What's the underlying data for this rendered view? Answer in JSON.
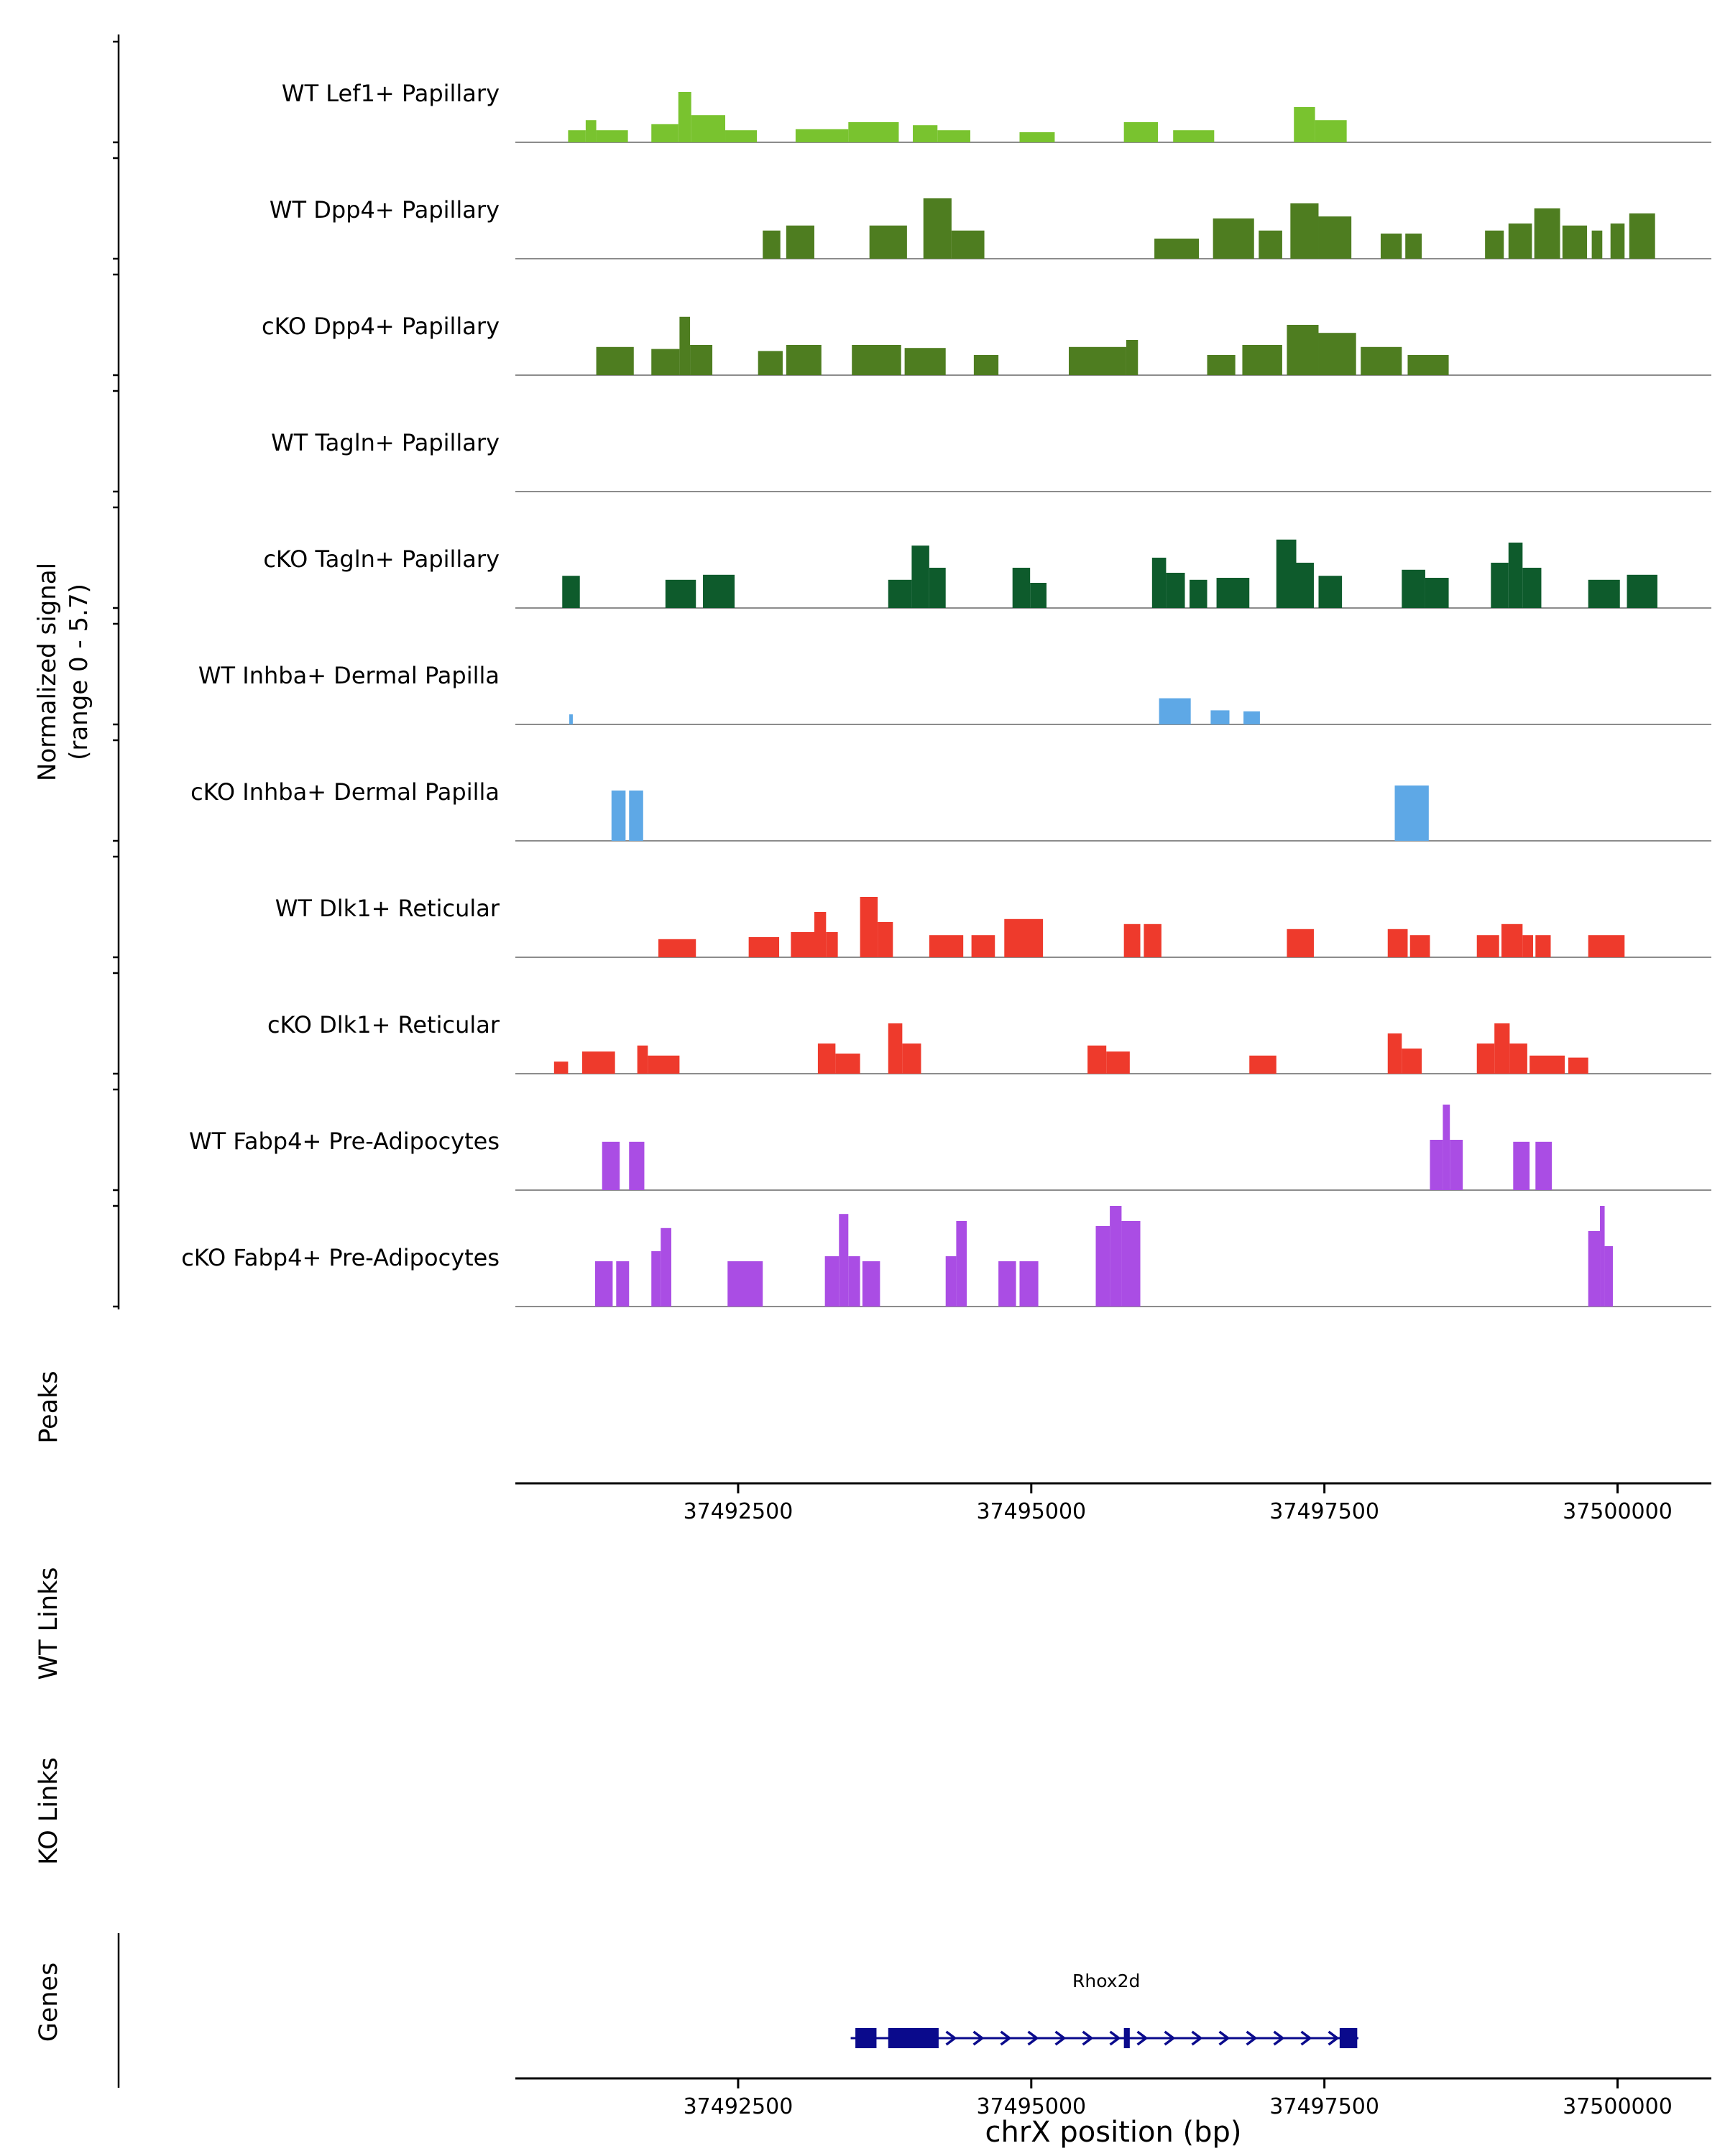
{
  "figure": {
    "y_axis_label_line1": "Normalized signal",
    "y_axis_label_line2": "(range 0 - 5.7)",
    "sections": {
      "peaks": "Peaks",
      "wt_links": "WT Links",
      "ko_links": "KO Links",
      "genes": "Genes"
    },
    "x_axis": {
      "title": "chrX position (bp)",
      "ticks": [
        "37492500",
        "37495000",
        "37497500",
        "37500000"
      ]
    }
  },
  "chart_data": {
    "type": "area",
    "subtype": "genome_coverage_tracks",
    "region": {
      "chrom": "chrX",
      "start": 37490600,
      "end": 37500800
    },
    "signal_range": [
      0,
      5.7
    ],
    "height_scale": "fraction of y-max (5.7)",
    "x_ticks_bp": [
      37492500,
      37495000,
      37497500,
      37500000
    ],
    "tracks": [
      {
        "name": "WT Lef1+ Papillary",
        "color": "#79C32F",
        "segments": [
          [
            37491050,
            37491200,
            0.12
          ],
          [
            37491200,
            37491290,
            0.22
          ],
          [
            37491290,
            37491560,
            0.12
          ],
          [
            37491760,
            37491990,
            0.18
          ],
          [
            37491990,
            37492100,
            0.5
          ],
          [
            37492100,
            37492390,
            0.27
          ],
          [
            37492390,
            37492660,
            0.12
          ],
          [
            37492990,
            37493440,
            0.13
          ],
          [
            37493440,
            37493870,
            0.2
          ],
          [
            37493990,
            37494200,
            0.17
          ],
          [
            37494200,
            37494480,
            0.12
          ],
          [
            37494900,
            37495200,
            0.1
          ],
          [
            37495790,
            37496080,
            0.2
          ],
          [
            37496210,
            37496560,
            0.12
          ],
          [
            37497240,
            37497420,
            0.35
          ],
          [
            37497420,
            37497690,
            0.22
          ]
        ]
      },
      {
        "name": "WT Dpp4+ Papillary",
        "color": "#4E7D20",
        "segments": [
          [
            37492710,
            37492860,
            0.28
          ],
          [
            37492910,
            37493150,
            0.33
          ],
          [
            37493620,
            37493940,
            0.33
          ],
          [
            37494080,
            37494320,
            0.6
          ],
          [
            37494320,
            37494600,
            0.28
          ],
          [
            37496050,
            37496430,
            0.2
          ],
          [
            37496550,
            37496900,
            0.4
          ],
          [
            37496940,
            37497140,
            0.28
          ],
          [
            37497210,
            37497450,
            0.55
          ],
          [
            37497450,
            37497730,
            0.42
          ],
          [
            37497980,
            37498160,
            0.25
          ],
          [
            37498190,
            37498330,
            0.25
          ],
          [
            37498870,
            37499030,
            0.28
          ],
          [
            37499070,
            37499270,
            0.35
          ],
          [
            37499290,
            37499510,
            0.5
          ],
          [
            37499530,
            37499740,
            0.33
          ],
          [
            37499780,
            37499870,
            0.28
          ],
          [
            37499940,
            37500060,
            0.35
          ],
          [
            37500100,
            37500320,
            0.45
          ]
        ]
      },
      {
        "name": "cKO Dpp4+ Papillary",
        "color": "#4E7D20",
        "segments": [
          [
            37491290,
            37491610,
            0.28
          ],
          [
            37491760,
            37492000,
            0.26
          ],
          [
            37492000,
            37492090,
            0.58
          ],
          [
            37492090,
            37492280,
            0.3
          ],
          [
            37492670,
            37492880,
            0.24
          ],
          [
            37492910,
            37493210,
            0.3
          ],
          [
            37493470,
            37493890,
            0.3
          ],
          [
            37493920,
            37494270,
            0.27
          ],
          [
            37494510,
            37494720,
            0.2
          ],
          [
            37495320,
            37495810,
            0.28
          ],
          [
            37495810,
            37495910,
            0.35
          ],
          [
            37496500,
            37496740,
            0.2
          ],
          [
            37496800,
            37497140,
            0.3
          ],
          [
            37497180,
            37497450,
            0.5
          ],
          [
            37497450,
            37497770,
            0.42
          ],
          [
            37497810,
            37498160,
            0.28
          ],
          [
            37498210,
            37498560,
            0.2
          ]
        ]
      },
      {
        "name": "WT Tagln+ Papillary",
        "color": "#0E5B2C",
        "segments": []
      },
      {
        "name": "cKO Tagln+ Papillary",
        "color": "#0E5B2C",
        "segments": [
          [
            37491000,
            37491150,
            0.32
          ],
          [
            37491880,
            37492140,
            0.28
          ],
          [
            37492200,
            37492470,
            0.33
          ],
          [
            37493780,
            37493980,
            0.28
          ],
          [
            37493980,
            37494130,
            0.62
          ],
          [
            37494130,
            37494270,
            0.4
          ],
          [
            37494840,
            37494990,
            0.4
          ],
          [
            37494990,
            37495130,
            0.25
          ],
          [
            37496030,
            37496150,
            0.5
          ],
          [
            37496150,
            37496310,
            0.35
          ],
          [
            37496350,
            37496500,
            0.28
          ],
          [
            37496580,
            37496860,
            0.3
          ],
          [
            37497090,
            37497260,
            0.68
          ],
          [
            37497260,
            37497410,
            0.45
          ],
          [
            37497450,
            37497650,
            0.32
          ],
          [
            37498160,
            37498360,
            0.38
          ],
          [
            37498360,
            37498560,
            0.3
          ],
          [
            37498920,
            37499070,
            0.45
          ],
          [
            37499070,
            37499190,
            0.65
          ],
          [
            37499190,
            37499350,
            0.4
          ],
          [
            37499750,
            37500020,
            0.28
          ],
          [
            37500080,
            37500340,
            0.33
          ]
        ]
      },
      {
        "name": "WT Inhba+ Dermal Papilla",
        "color": "#5EA8E6",
        "segments": [
          [
            37491060,
            37491090,
            0.1
          ],
          [
            37496090,
            37496360,
            0.26
          ],
          [
            37496530,
            37496690,
            0.14
          ],
          [
            37496810,
            37496950,
            0.13
          ]
        ]
      },
      {
        "name": "cKO Inhba+ Dermal Papilla",
        "color": "#5EA8E6",
        "segments": [
          [
            37491420,
            37491540,
            0.5
          ],
          [
            37491570,
            37491690,
            0.5
          ],
          [
            37498100,
            37498390,
            0.55
          ]
        ]
      },
      {
        "name": "WT Dlk1+ Reticular",
        "color": "#EE3A2C",
        "segments": [
          [
            37491820,
            37492140,
            0.18
          ],
          [
            37492590,
            37492850,
            0.2
          ],
          [
            37492950,
            37493150,
            0.25
          ],
          [
            37493150,
            37493250,
            0.45
          ],
          [
            37493250,
            37493350,
            0.25
          ],
          [
            37493540,
            37493690,
            0.6
          ],
          [
            37493690,
            37493820,
            0.35
          ],
          [
            37494130,
            37494420,
            0.22
          ],
          [
            37494490,
            37494690,
            0.22
          ],
          [
            37494770,
            37495100,
            0.38
          ],
          [
            37495790,
            37495930,
            0.33
          ],
          [
            37495960,
            37496110,
            0.33
          ],
          [
            37497180,
            37497410,
            0.28
          ],
          [
            37498040,
            37498210,
            0.28
          ],
          [
            37498230,
            37498400,
            0.22
          ],
          [
            37498800,
            37498990,
            0.22
          ],
          [
            37499010,
            37499190,
            0.33
          ],
          [
            37499190,
            37499280,
            0.22
          ],
          [
            37499300,
            37499430,
            0.22
          ],
          [
            37499750,
            37500060,
            0.22
          ]
        ]
      },
      {
        "name": "cKO Dlk1+ Reticular",
        "color": "#EE3A2C",
        "segments": [
          [
            37490930,
            37491050,
            0.12
          ],
          [
            37491170,
            37491450,
            0.22
          ],
          [
            37491640,
            37491730,
            0.28
          ],
          [
            37491730,
            37492000,
            0.18
          ],
          [
            37493180,
            37493330,
            0.3
          ],
          [
            37493330,
            37493540,
            0.2
          ],
          [
            37493780,
            37493900,
            0.5
          ],
          [
            37493900,
            37494060,
            0.3
          ],
          [
            37495480,
            37495640,
            0.28
          ],
          [
            37495640,
            37495840,
            0.22
          ],
          [
            37496860,
            37497090,
            0.18
          ],
          [
            37498040,
            37498160,
            0.4
          ],
          [
            37498160,
            37498330,
            0.25
          ],
          [
            37498800,
            37498950,
            0.3
          ],
          [
            37498950,
            37499080,
            0.5
          ],
          [
            37499080,
            37499230,
            0.3
          ],
          [
            37499250,
            37499550,
            0.18
          ],
          [
            37499580,
            37499750,
            0.16
          ]
        ]
      },
      {
        "name": "WT Fabp4+ Pre-Adipocytes",
        "color": "#AA4DE4",
        "segments": [
          [
            37491340,
            37491490,
            0.48
          ],
          [
            37491570,
            37491700,
            0.48
          ],
          [
            37498400,
            37498510,
            0.5
          ],
          [
            37498510,
            37498570,
            0.85
          ],
          [
            37498570,
            37498680,
            0.5
          ],
          [
            37499110,
            37499250,
            0.48
          ],
          [
            37499300,
            37499440,
            0.48
          ]
        ]
      },
      {
        "name": "cKO Fabp4+ Pre-Adipocytes",
        "color": "#AA4DE4",
        "segments": [
          [
            37491280,
            37491430,
            0.45
          ],
          [
            37491460,
            37491570,
            0.45
          ],
          [
            37491760,
            37491840,
            0.55
          ],
          [
            37491840,
            37491930,
            0.78
          ],
          [
            37492410,
            37492710,
            0.45
          ],
          [
            37493240,
            37493360,
            0.5
          ],
          [
            37493360,
            37493440,
            0.92
          ],
          [
            37493440,
            37493540,
            0.5
          ],
          [
            37493560,
            37493710,
            0.45
          ],
          [
            37494270,
            37494360,
            0.5
          ],
          [
            37494360,
            37494450,
            0.85
          ],
          [
            37494720,
            37494870,
            0.45
          ],
          [
            37494900,
            37495060,
            0.45
          ],
          [
            37495550,
            37495670,
            0.8
          ],
          [
            37495670,
            37495770,
            1.0
          ],
          [
            37495770,
            37495930,
            0.85
          ],
          [
            37499750,
            37499850,
            0.75
          ],
          [
            37499850,
            37499890,
            1.0
          ],
          [
            37499890,
            37499960,
            0.6
          ]
        ]
      }
    ],
    "peaks": [],
    "wt_links": [],
    "ko_links": [],
    "genes": [
      {
        "name": "Rhox2d",
        "color": "#0A0A8C",
        "chrom": "chrX",
        "start": 37493460,
        "end": 37497790,
        "strand": "+",
        "exons": [
          [
            37493500,
            37493680
          ],
          [
            37493780,
            37494210
          ],
          [
            37495790,
            37495840
          ],
          [
            37497630,
            37497780
          ]
        ],
        "label_bp": 37495640
      }
    ]
  }
}
